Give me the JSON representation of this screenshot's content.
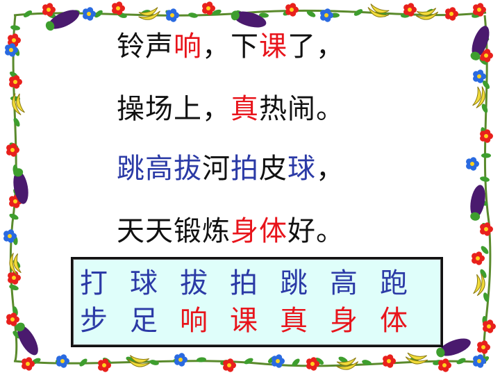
{
  "colors": {
    "black": "#111111",
    "red": "#e8141b",
    "blue": "#2b3aa6",
    "box_bg": "#dffefa",
    "vine": "#5a8a2c",
    "leaf": "#3e9e2e",
    "flower_red": "#e8201c",
    "flower_blue": "#2a6ae0",
    "banana": "#f2dc3a",
    "eggplant": "#4a1a6e"
  },
  "poem": [
    [
      {
        "text": "铃声",
        "color": "black"
      },
      {
        "text": "响",
        "color": "red"
      },
      {
        "text": "，下",
        "color": "black"
      },
      {
        "text": "课",
        "color": "red"
      },
      {
        "text": "了，",
        "color": "black"
      }
    ],
    [
      {
        "text": "操场上，",
        "color": "black"
      },
      {
        "text": "真",
        "color": "red"
      },
      {
        "text": "热闹。",
        "color": "black"
      }
    ],
    [
      {
        "text": "跳高拔",
        "color": "blue"
      },
      {
        "text": "河",
        "color": "black"
      },
      {
        "text": "拍",
        "color": "blue"
      },
      {
        "text": "皮",
        "color": "black"
      },
      {
        "text": "球",
        "color": "blue"
      },
      {
        "text": "，",
        "color": "black"
      }
    ],
    [
      {
        "text": "天天锻炼",
        "color": "black"
      },
      {
        "text": "身体",
        "color": "red"
      },
      {
        "text": "好。",
        "color": "black"
      }
    ]
  ],
  "vocab": {
    "row1": [
      {
        "text": "打",
        "color": "blue"
      },
      {
        "text": "球",
        "color": "blue"
      },
      {
        "text": "拔",
        "color": "blue"
      },
      {
        "text": "拍",
        "color": "blue"
      },
      {
        "text": "跳",
        "color": "blue"
      },
      {
        "text": "高",
        "color": "blue"
      },
      {
        "text": "跑",
        "color": "blue"
      }
    ],
    "row2": [
      {
        "text": "步",
        "color": "blue"
      },
      {
        "text": "足",
        "color": "blue"
      },
      {
        "text": "响",
        "color": "red"
      },
      {
        "text": "课",
        "color": "red"
      },
      {
        "text": "真",
        "color": "red"
      },
      {
        "text": "身",
        "color": "red"
      },
      {
        "text": "体",
        "color": "red"
      }
    ]
  }
}
